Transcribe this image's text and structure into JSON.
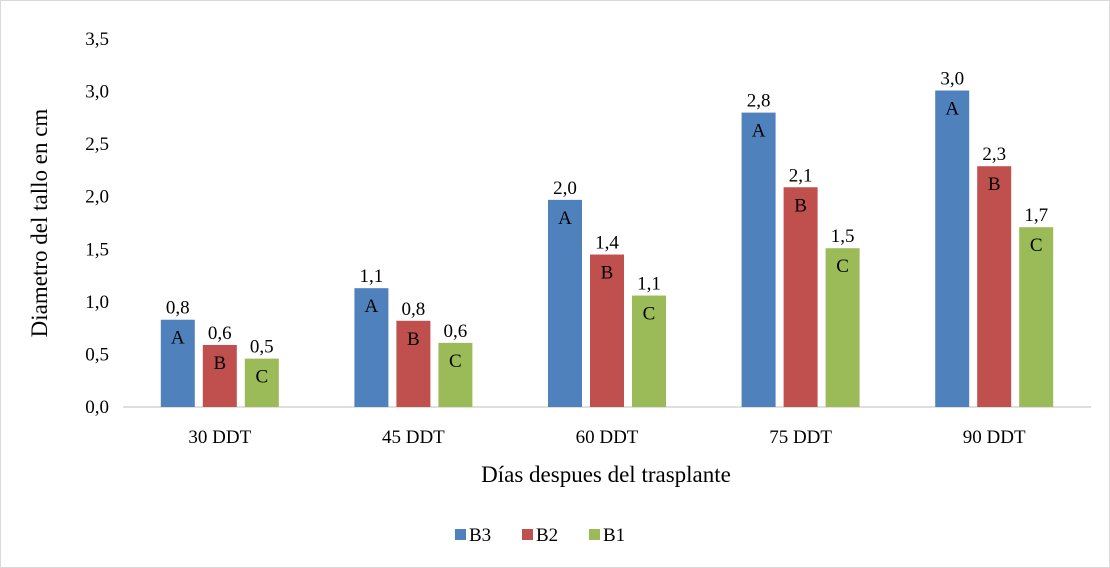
{
  "chart_data": {
    "type": "bar",
    "categories": [
      "30 DDT",
      "45 DDT",
      "60 DDT",
      "75 DDT",
      "90 DDT"
    ],
    "series": [
      {
        "name": "B3",
        "color": "#4f81bd",
        "values": [
          0.83,
          1.13,
          1.97,
          2.8,
          3.01
        ],
        "labels": [
          "0,8",
          "1,1",
          "2,0",
          "2,8",
          "3,0"
        ],
        "letters": [
          "A",
          "A",
          "A",
          "A",
          "A"
        ]
      },
      {
        "name": "B2",
        "color": "#c0504d",
        "values": [
          0.59,
          0.82,
          1.45,
          2.09,
          2.29
        ],
        "labels": [
          "0,6",
          "0,8",
          "1,4",
          "2,1",
          "2,3"
        ],
        "letters": [
          "B",
          "B",
          "B",
          "B",
          "B"
        ]
      },
      {
        "name": "B1",
        "color": "#9bbb59",
        "values": [
          0.46,
          0.61,
          1.06,
          1.51,
          1.71
        ],
        "labels": [
          "0,5",
          "0,6",
          "1,1",
          "1,5",
          "1,7"
        ],
        "letters": [
          "C",
          "C",
          "C",
          "C",
          "C"
        ]
      }
    ],
    "xlabel": "Días despues del trasplante",
    "ylabel": "Diametro del tallo en cm",
    "ylim": [
      0,
      3.5
    ],
    "yticks": [
      0,
      0.5,
      1.0,
      1.5,
      2.0,
      2.5,
      3.0,
      3.5
    ],
    "ytick_labels": [
      "0,0",
      "0,5",
      "1,0",
      "1,5",
      "2,0",
      "2,5",
      "3,0",
      "3,5"
    ],
    "grid": false,
    "legend_position": "bottom"
  }
}
